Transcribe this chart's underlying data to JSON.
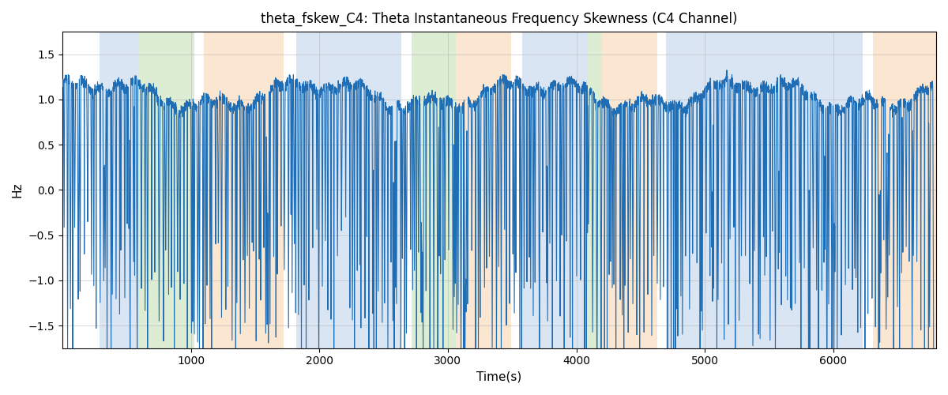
{
  "title": "theta_fskew_C4: Theta Instantaneous Frequency Skewness (C4 Channel)",
  "xlabel": "Time(s)",
  "ylabel": "Hz",
  "xlim": [
    0,
    6800
  ],
  "ylim": [
    -1.75,
    1.75
  ],
  "yticks": [
    -1.5,
    -1.0,
    -0.5,
    0.0,
    0.5,
    1.0,
    1.5
  ],
  "xticks": [
    1000,
    2000,
    3000,
    4000,
    5000,
    6000
  ],
  "line_color": "#1f6eb5",
  "line_width": 0.8,
  "background_color": "#ffffff",
  "grid_color": "#b0b0b0",
  "bands": [
    {
      "start": 290,
      "end": 600,
      "color": "#aec6e8",
      "alpha": 0.45
    },
    {
      "start": 600,
      "end": 1030,
      "color": "#b5d9a0",
      "alpha": 0.45
    },
    {
      "start": 1100,
      "end": 1720,
      "color": "#f5c89a",
      "alpha": 0.45
    },
    {
      "start": 1820,
      "end": 2640,
      "color": "#aec6e8",
      "alpha": 0.45
    },
    {
      "start": 2720,
      "end": 3060,
      "color": "#b5d9a0",
      "alpha": 0.45
    },
    {
      "start": 3060,
      "end": 3490,
      "color": "#f5c89a",
      "alpha": 0.45
    },
    {
      "start": 3580,
      "end": 4090,
      "color": "#aec6e8",
      "alpha": 0.45
    },
    {
      "start": 4090,
      "end": 4200,
      "color": "#b5d9a0",
      "alpha": 0.45
    },
    {
      "start": 4200,
      "end": 4630,
      "color": "#f5c89a",
      "alpha": 0.45
    },
    {
      "start": 4700,
      "end": 6230,
      "color": "#aec6e8",
      "alpha": 0.45
    },
    {
      "start": 6310,
      "end": 6800,
      "color": "#f5c89a",
      "alpha": 0.45
    }
  ]
}
